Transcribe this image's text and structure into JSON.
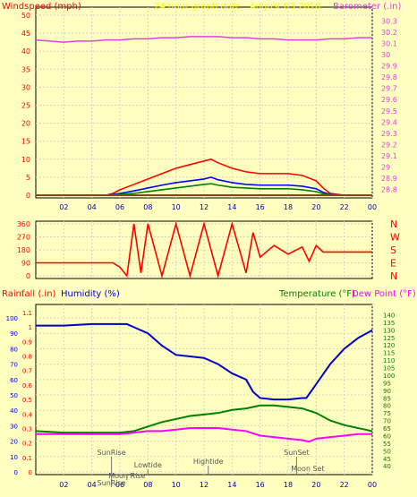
{
  "chart_data": [
    {
      "panel": "wind-barometer",
      "type": "line",
      "title": "24 hour graph date - August 03 2016",
      "ylabel_left": "Windspeed (mph)",
      "ylabel_right": "Barometer (.in)",
      "x_ticks": [
        "02",
        "04",
        "06",
        "08",
        "10",
        "12",
        "14",
        "16",
        "18",
        "20",
        "22",
        "00"
      ],
      "y_ticks_left": [
        "0",
        "5",
        "10",
        "15",
        "20",
        "25",
        "30",
        "35",
        "40",
        "45",
        "50"
      ],
      "y_ticks_right": [
        "28.8",
        "28.9",
        "29",
        "29.1",
        "29.2",
        "29.3",
        "29.4",
        "29.5",
        "29.6",
        "29.7",
        "29.8",
        "29.9",
        "30",
        "30.1",
        "30.2",
        "30.3"
      ],
      "ylim_left": [
        0,
        50
      ],
      "ylim_right": [
        28.75,
        30.35
      ],
      "grid": true,
      "series": [
        {
          "color": "#e040e0",
          "hours": [
            0,
            1,
            2,
            3,
            4,
            5,
            6,
            7,
            8,
            9,
            10,
            11,
            12,
            13,
            14,
            15,
            16,
            17,
            18,
            19,
            20,
            21,
            22,
            23,
            24
          ],
          "values": [
            30.13,
            30.12,
            30.11,
            30.12,
            30.12,
            30.13,
            30.13,
            30.14,
            30.14,
            30.15,
            30.15,
            30.16,
            30.16,
            30.16,
            30.15,
            30.15,
            30.14,
            30.14,
            30.13,
            30.13,
            30.13,
            30.14,
            30.14,
            30.15,
            30.15
          ]
        },
        {
          "color": "#ff0000",
          "hours": [
            0,
            2,
            4,
            5,
            5.5,
            6,
            7,
            8,
            9,
            10,
            11,
            12,
            12.5,
            13,
            14,
            15,
            16,
            17,
            18,
            19,
            20,
            20.5,
            21,
            22,
            24
          ],
          "values": [
            0,
            0,
            0,
            0,
            0.5,
            1.5,
            3,
            4.5,
            6,
            7.5,
            8.5,
            9.5,
            10,
            9,
            7.5,
            6.5,
            6,
            6,
            6,
            5.5,
            4,
            2,
            0.5,
            0,
            0
          ]
        },
        {
          "color": "#0000ff",
          "hours": [
            0,
            2,
            4,
            5,
            5.5,
            6,
            7,
            8,
            9,
            10,
            11,
            12,
            12.5,
            13,
            14,
            15,
            16,
            17,
            18,
            19,
            20,
            20.5,
            21,
            22,
            24
          ],
          "values": [
            0,
            0,
            0,
            0,
            0.2,
            0.5,
            1.2,
            2,
            2.8,
            3.5,
            4,
            4.5,
            5,
            4.3,
            3.5,
            3,
            2.8,
            2.8,
            2.8,
            2.5,
            1.8,
            0.8,
            0.2,
            0,
            0
          ]
        },
        {
          "color": "#008000",
          "hours": [
            0,
            2,
            4,
            5,
            5.5,
            6,
            7,
            8,
            9,
            10,
            11,
            12,
            12.5,
            13,
            14,
            15,
            16,
            17,
            18,
            19,
            20,
            20.5,
            21,
            22,
            24
          ],
          "values": [
            0,
            0,
            0,
            0,
            0.1,
            0.2,
            0.5,
            1,
            1.5,
            2,
            2.5,
            3,
            3.2,
            2.8,
            2.2,
            2,
            1.8,
            1.8,
            1.8,
            1.5,
            1,
            0.4,
            0.1,
            0,
            0
          ]
        }
      ]
    },
    {
      "panel": "wind-direction",
      "type": "line",
      "y_ticks_left": [
        "0",
        "90",
        "180",
        "270",
        "360"
      ],
      "direction_labels": [
        "N",
        "W",
        "S",
        "E",
        "N"
      ],
      "ylim": [
        0,
        360
      ],
      "series": [
        {
          "color": "#ff0000",
          "hours": [
            0,
            5.5,
            6,
            6.5,
            7,
            7.5,
            8,
            9,
            10,
            11,
            12,
            13,
            14,
            15,
            15.5,
            16,
            17,
            18,
            19,
            19.5,
            20,
            20.5,
            24
          ],
          "values": [
            90,
            90,
            60,
            0,
            360,
            20,
            360,
            0,
            360,
            0,
            360,
            0,
            360,
            20,
            300,
            130,
            210,
            150,
            200,
            100,
            210,
            165,
            165
          ]
        }
      ]
    },
    {
      "panel": "temp-humidity-rain",
      "type": "line",
      "ylabel_left_1": "Rainfall (.in)",
      "ylabel_left_2": "Humidity (%)",
      "ylabel_right_1": "Temperature (°F)",
      "ylabel_right_2": "Dew Point (°F)",
      "y_ticks_hum": [
        "0",
        "10",
        "20",
        "30",
        "40",
        "50",
        "60",
        "70",
        "80",
        "90",
        "100"
      ],
      "y_ticks_rain": [
        "0",
        "0.1",
        "0.2",
        "0.3",
        "0.4",
        "0.5",
        "0.6",
        "0.7",
        "0.8",
        "0.9",
        "1",
        "1.1"
      ],
      "y_ticks_temp": [
        "40",
        "45",
        "50",
        "55",
        "60",
        "65",
        "70",
        "75",
        "80",
        "85",
        "90",
        "95",
        "100",
        "105",
        "110",
        "115",
        "120",
        "125",
        "130",
        "135",
        "140"
      ],
      "ylim_hum": [
        0,
        107
      ],
      "ylim_temp": [
        36,
        145
      ],
      "annotations": [
        "SunRise",
        "Lowtide",
        "Moon Rise",
        "Hightide",
        "SunSet",
        "Moon Set",
        "SunRise"
      ],
      "series": [
        {
          "name": "Humidity",
          "color": "#0000cc",
          "hours": [
            0,
            2,
            4,
            6,
            6.5,
            7,
            8,
            9,
            10,
            11,
            12,
            13,
            14,
            15,
            15.5,
            16,
            17,
            18,
            19,
            19.3,
            20,
            21,
            22,
            23,
            24
          ],
          "values": [
            95,
            95,
            96,
            96,
            96,
            94,
            90,
            82,
            76,
            75,
            74,
            70,
            64,
            60,
            52,
            48,
            47,
            47,
            48,
            48,
            57,
            70,
            80,
            87,
            92
          ]
        },
        {
          "name": "Temperature",
          "color": "#008000",
          "hours": [
            0,
            2,
            4,
            6,
            7,
            8,
            9,
            10,
            11,
            12,
            13,
            14,
            15,
            16,
            17,
            18,
            19,
            20,
            21,
            22,
            23,
            24
          ],
          "values": [
            63,
            62,
            62,
            62,
            63,
            66,
            69,
            71,
            73,
            74,
            75,
            77,
            78,
            80,
            80,
            79,
            78,
            75,
            70,
            67,
            65,
            63
          ]
        },
        {
          "name": "Dew Point",
          "color": "#ff00ff",
          "hours": [
            0,
            2,
            4,
            6,
            7,
            8,
            9,
            10,
            11,
            12,
            13,
            14,
            15,
            16,
            17,
            18,
            19,
            19.5,
            20,
            21,
            22,
            23,
            24
          ],
          "values": [
            61,
            61,
            61,
            61,
            62,
            63,
            63,
            64,
            65,
            65,
            65,
            64,
            63,
            60,
            59,
            58,
            57,
            56,
            58,
            59,
            60,
            61,
            61
          ]
        }
      ]
    }
  ]
}
